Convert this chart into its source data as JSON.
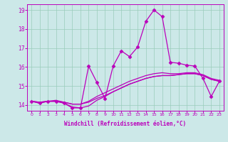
{
  "xlabel": "Windchill (Refroidissement éolien,°C)",
  "x_hours": [
    0,
    1,
    2,
    3,
    4,
    5,
    6,
    7,
    8,
    9,
    10,
    11,
    12,
    13,
    14,
    15,
    16,
    17,
    18,
    19,
    20,
    21,
    22,
    23
  ],
  "line_zigzag_y": [
    14.2,
    14.1,
    14.2,
    14.2,
    14.1,
    13.85,
    13.85,
    16.05,
    15.2,
    14.35,
    16.05,
    16.85,
    16.55,
    17.05,
    18.4,
    19.0,
    18.65,
    16.25,
    16.2,
    16.1,
    16.05,
    15.4,
    14.45,
    15.25
  ],
  "line_flat1_y": [
    14.2,
    14.15,
    14.2,
    14.2,
    14.15,
    14.05,
    14.05,
    14.15,
    14.35,
    14.5,
    14.7,
    14.9,
    15.1,
    15.25,
    15.4,
    15.5,
    15.55,
    15.55,
    15.6,
    15.65,
    15.65,
    15.55,
    15.35,
    15.25
  ],
  "line_flat2_y": [
    14.2,
    14.1,
    14.2,
    14.2,
    14.1,
    13.9,
    13.85,
    13.95,
    14.25,
    14.45,
    14.7,
    14.9,
    15.1,
    15.25,
    15.4,
    15.5,
    15.55,
    15.55,
    15.6,
    15.65,
    15.65,
    15.55,
    15.35,
    15.25
  ],
  "line_flat3_y": [
    14.2,
    14.15,
    14.2,
    14.25,
    14.15,
    14.05,
    14.05,
    14.2,
    14.45,
    14.65,
    14.85,
    15.05,
    15.25,
    15.4,
    15.55,
    15.65,
    15.7,
    15.65,
    15.65,
    15.7,
    15.7,
    15.6,
    15.4,
    15.3
  ],
  "line_color": "#bb00bb",
  "bg_color": "#cce8e8",
  "grid_color": "#99ccbb",
  "ylim": [
    13.7,
    19.3
  ],
  "yticks": [
    14,
    15,
    16,
    17,
    18,
    19
  ],
  "xlim": [
    -0.5,
    23.5
  ]
}
